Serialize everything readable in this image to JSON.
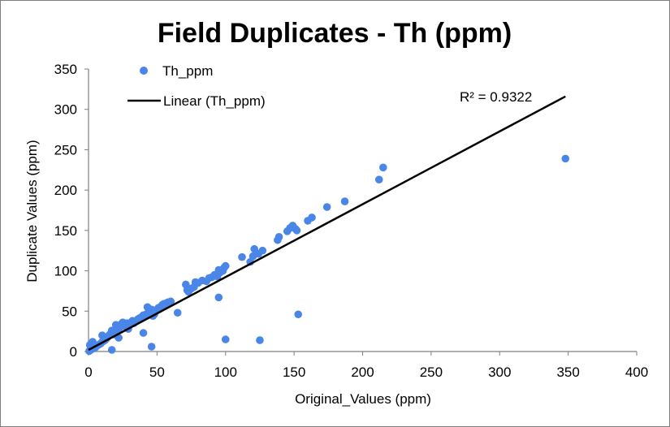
{
  "chart_data": {
    "type": "scatter",
    "title": "Field Duplicates  - Th (ppm)",
    "xlabel": "Original_Values (ppm)",
    "ylabel": "Duplicate Values (ppm)",
    "xlim": [
      0,
      400
    ],
    "ylim": [
      0,
      350
    ],
    "xticks": [
      0,
      50,
      100,
      150,
      200,
      250,
      300,
      350,
      400
    ],
    "yticks": [
      0,
      50,
      100,
      150,
      200,
      250,
      300,
      350
    ],
    "grid": false,
    "legend_position": "top-left",
    "colors": {
      "points": "#4a86e8",
      "trendline": "#000000",
      "frame": "#7f7f7f",
      "axis": "#7f7f7f"
    },
    "series": [
      {
        "name": "Th_ppm",
        "kind": "scatter",
        "points": [
          [
            0.5,
            0.5
          ],
          [
            1,
            1.5
          ],
          [
            1.5,
            2
          ],
          [
            2,
            2.5
          ],
          [
            2.5,
            3
          ],
          [
            3,
            3.5
          ],
          [
            1,
            8
          ],
          [
            2,
            10
          ],
          [
            3,
            12
          ],
          [
            4,
            4
          ],
          [
            5,
            5
          ],
          [
            5.5,
            6
          ],
          [
            6,
            7
          ],
          [
            7,
            8
          ],
          [
            8,
            9
          ],
          [
            9,
            10
          ],
          [
            10,
            12
          ],
          [
            10,
            20
          ],
          [
            11,
            13
          ],
          [
            12,
            14
          ],
          [
            13,
            16
          ],
          [
            14,
            18
          ],
          [
            15,
            20
          ],
          [
            16,
            22
          ],
          [
            17,
            26
          ],
          [
            17,
            2
          ],
          [
            18,
            23
          ],
          [
            19,
            21
          ],
          [
            20,
            24
          ],
          [
            20,
            33
          ],
          [
            21,
            25
          ],
          [
            22,
            28
          ],
          [
            22,
            17
          ],
          [
            23,
            30
          ],
          [
            24,
            34
          ],
          [
            25,
            36
          ],
          [
            26,
            32
          ],
          [
            27,
            31
          ],
          [
            28,
            35
          ],
          [
            29,
            28
          ],
          [
            30,
            33
          ],
          [
            31,
            36
          ],
          [
            32,
            38
          ],
          [
            33,
            35
          ],
          [
            34,
            37
          ],
          [
            35,
            38
          ],
          [
            36,
            40
          ],
          [
            37,
            41
          ],
          [
            38,
            42
          ],
          [
            39,
            43
          ],
          [
            40,
            45
          ],
          [
            41,
            44
          ],
          [
            42,
            46
          ],
          [
            43,
            55
          ],
          [
            44,
            50
          ],
          [
            45,
            48
          ],
          [
            46,
            52
          ],
          [
            47,
            44
          ],
          [
            48,
            46
          ],
          [
            49,
            50
          ],
          [
            50,
            52
          ],
          [
            51,
            54
          ],
          [
            52,
            53
          ],
          [
            53,
            56
          ],
          [
            54,
            58
          ],
          [
            55,
            59
          ],
          [
            56,
            57
          ],
          [
            57,
            60
          ],
          [
            58,
            61
          ],
          [
            59,
            60
          ],
          [
            60,
            62
          ],
          [
            40,
            23
          ],
          [
            46,
            6
          ],
          [
            65,
            48
          ],
          [
            71,
            83
          ],
          [
            72,
            76
          ],
          [
            73,
            74
          ],
          [
            75,
            78
          ],
          [
            77,
            80
          ],
          [
            78,
            86
          ],
          [
            80,
            85
          ],
          [
            83,
            88
          ],
          [
            86,
            87
          ],
          [
            88,
            91
          ],
          [
            90,
            92
          ],
          [
            92,
            95
          ],
          [
            94,
            93
          ],
          [
            95,
            101
          ],
          [
            96,
            98
          ],
          [
            98,
            100
          ],
          [
            99,
            104
          ],
          [
            100,
            106
          ],
          [
            95,
            67
          ],
          [
            100,
            15
          ],
          [
            112,
            117
          ],
          [
            118,
            111
          ],
          [
            120,
            118
          ],
          [
            121,
            127
          ],
          [
            124,
            121
          ],
          [
            127,
            125
          ],
          [
            125,
            14
          ],
          [
            138,
            138
          ],
          [
            139,
            142
          ],
          [
            145,
            149
          ],
          [
            147,
            153
          ],
          [
            149,
            156
          ],
          [
            151,
            152
          ],
          [
            152,
            150
          ],
          [
            153,
            46
          ],
          [
            160,
            162
          ],
          [
            163,
            166
          ],
          [
            174,
            179
          ],
          [
            187,
            186
          ],
          [
            212,
            213
          ],
          [
            215,
            228
          ],
          [
            348,
            239
          ]
        ]
      },
      {
        "name": "Linear (Th_ppm)",
        "kind": "line",
        "x": [
          0,
          348
        ],
        "y": [
          2,
          316
        ]
      }
    ],
    "annotations": [
      {
        "text": "R² = 0.9322",
        "x": 271,
        "y": 311
      }
    ]
  }
}
